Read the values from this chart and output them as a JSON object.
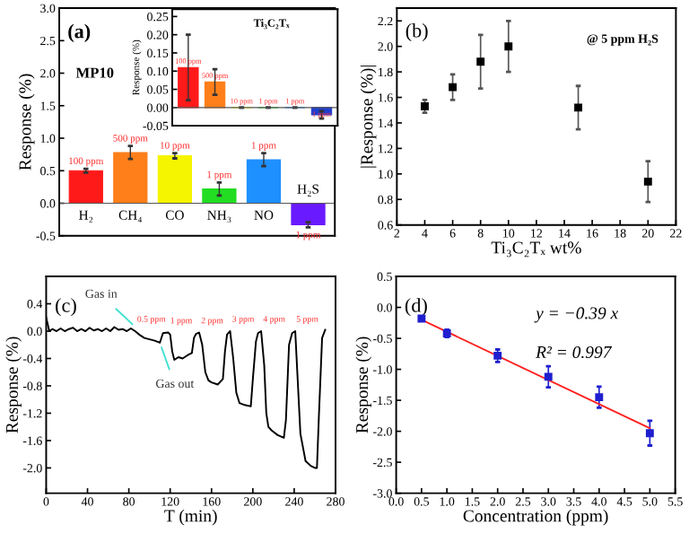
{
  "chart_data": [
    {
      "type": "bar",
      "categories": [
        "H₂",
        "CH₄",
        "CO",
        "NH₃",
        "NO",
        "H₂S"
      ],
      "values": [
        0.5,
        0.78,
        0.73,
        0.22,
        0.67,
        -0.33
      ],
      "colors": [
        "#ff1a1a",
        "#ff7f1a",
        "#f5f500",
        "#22dd22",
        "#1e90ff",
        "#6a1aff"
      ],
      "errors": [
        0.03,
        0.1,
        0.04,
        0.1,
        0.1,
        0.04
      ],
      "ylabel": "Response (%)",
      "ylim": [
        -0.5,
        3.0
      ],
      "yticks": [
        -0.5,
        {
          "value": 0,
          "label": "0.0"
        },
        0.5,
        {
          "value": 1,
          "label": "1.0"
        },
        1.5,
        {
          "value": 2,
          "label": "2.0"
        },
        2.5,
        {
          "value": 3,
          "label": "3.0"
        }
      ],
      "annotations": [
        "(a)",
        "MP10",
        {
          "text": "100 ppm",
          "x": "H₂",
          "y": 0.53
        },
        {
          "text": "500 ppm",
          "x": "CH₄",
          "y": 0.88
        },
        {
          "text": "10 ppm",
          "x": "CO",
          "y": 0.77
        },
        {
          "text": "1 ppm",
          "x": "NH₃",
          "y": 0.32
        },
        {
          "text": "1 ppm",
          "x": "NO",
          "y": 0.77
        },
        {
          "text": "1 ppm",
          "x": "H₂S",
          "y": -0.37
        }
      ]
    },
    {
      "type": "bar",
      "categories": [
        null,
        null,
        null,
        null,
        null,
        null
      ],
      "values": [
        0.11,
        0.07,
        0,
        0,
        0,
        -0.02
      ],
      "colors": [
        "#ff1a1a",
        "#ff7f1a",
        "#f5f500",
        "#22dd22",
        "#1e90ff",
        "#1f3fd0"
      ],
      "errors": [
        0.09,
        0.035,
        null,
        null,
        null,
        0.01
      ],
      "title": "Ti₃C₂Tₓ",
      "ylabel": "Response (%)",
      "ylim": [
        -0.05,
        0.27
      ],
      "yticks": [
        -0.05,
        {
          "value": 0,
          "label": "0.00"
        },
        0.05,
        {
          "value": 0.1,
          "label": "0.10"
        },
        0.15,
        {
          "value": 0.2,
          "label": "0.20"
        },
        0.25
      ],
      "annotations": [
        {
          "text": "100 ppm",
          "y": 0.11
        },
        {
          "text": "500 ppm",
          "y": 0.07
        },
        {
          "text": "10 ppm",
          "y": 0
        },
        {
          "text": "1 ppm",
          "y": 0
        },
        {
          "text": "1 ppm",
          "y": 0
        },
        {
          "text": "1 ppm",
          "y": 0
        }
      ]
    },
    {
      "type": "scatter",
      "x": [
        4,
        6,
        8,
        10,
        15,
        20
      ],
      "values": [
        1.53,
        1.68,
        1.88,
        2.0,
        1.52,
        0.94
      ],
      "errors": [
        0.05,
        0.1,
        0.21,
        0.2,
        0.17,
        0.16
      ],
      "color": "#000000",
      "marker": "square",
      "xlabel": "Ti₃C₂Tₓ wt%",
      "ylabel": "|Response (%)|",
      "xlim": [
        2,
        22
      ],
      "xticks": [
        2,
        4,
        6,
        8,
        10,
        12,
        14,
        16,
        18,
        20,
        22
      ],
      "ylim": [
        0.6,
        2.3
      ],
      "yticks": [
        0.6,
        0.8,
        {
          "value": 1,
          "label": "1.0"
        },
        1.2,
        1.4,
        1.6,
        1.8,
        {
          "value": 2,
          "label": "2.0"
        },
        2.2
      ],
      "annotations": [
        "(b)",
        "@ 5 ppm H₂S"
      ]
    },
    {
      "type": "line",
      "x": [
        0,
        3,
        6,
        10,
        14,
        18,
        22,
        26,
        30,
        34,
        38,
        42,
        46,
        50,
        54,
        58,
        62,
        66,
        70,
        74,
        78,
        82,
        86,
        90,
        95,
        100,
        105,
        110,
        113,
        118,
        120,
        122,
        124,
        128,
        132,
        137,
        141,
        143,
        145,
        148,
        151,
        154,
        157,
        160,
        166,
        171,
        173,
        175,
        178,
        181,
        184,
        187,
        192,
        198,
        200,
        203,
        205,
        208,
        211,
        213,
        215,
        218,
        224,
        230,
        232,
        235,
        238,
        241,
        243,
        246,
        251,
        256,
        260,
        262,
        264,
        267,
        270
      ],
      "values": [
        0.2,
        0.0,
        0.03,
        0.0,
        0.04,
        0.0,
        0.03,
        0.05,
        0.0,
        0.03,
        0.0,
        0.05,
        0.01,
        0.03,
        0.0,
        0.04,
        0.0,
        0.06,
        0.02,
        0.03,
        0.0,
        0.04,
        0.0,
        -0.05,
        -0.1,
        -0.12,
        -0.14,
        -0.17,
        -0.03,
        -0.02,
        -0.05,
        -0.3,
        -0.42,
        -0.38,
        -0.4,
        -0.35,
        -0.32,
        -0.1,
        -0.04,
        -0.02,
        -0.2,
        -0.6,
        -0.72,
        -0.75,
        -0.78,
        -0.7,
        -0.3,
        -0.05,
        0.0,
        -0.4,
        -0.9,
        -1.05,
        -1.08,
        -1.1,
        -0.7,
        -0.15,
        -0.03,
        0.0,
        -0.5,
        -1.2,
        -1.4,
        -1.45,
        -1.52,
        -1.56,
        -1.3,
        -0.2,
        -0.03,
        0.0,
        -0.6,
        -1.5,
        -1.9,
        -1.97,
        -2.0,
        -2.0,
        -1.2,
        -0.1,
        0.02
      ],
      "color": "#000000",
      "xlabel": "T (min)",
      "ylabel": "Response (%)",
      "xlim": [
        0,
        280
      ],
      "xticks": [
        0,
        40,
        80,
        120,
        160,
        200,
        240,
        280
      ],
      "ylim": [
        -2.37,
        0.8
      ],
      "yticks": [
        {
          "value": -2,
          "label": "-2.0"
        },
        -1.6,
        -1.2,
        -0.8,
        -0.4,
        {
          "value": 0,
          "label": "0.0"
        },
        0.4
      ],
      "annotations": [
        "(c)",
        {
          "text": "Gas in",
          "x": 87,
          "y": 0.05
        },
        {
          "text": "Gas out",
          "x": 110,
          "y": -0.17
        },
        {
          "text": "0.5 ppm",
          "x": 88,
          "y": 0.0
        },
        {
          "text": "1 ppm",
          "x": 120,
          "y": -0.02
        },
        {
          "text": "2 ppm",
          "x": 150,
          "y": -0.02
        },
        {
          "text": "3 ppm",
          "x": 180,
          "y": 0.0
        },
        {
          "text": "4 ppm",
          "x": 210,
          "y": 0.0
        },
        {
          "text": "5 ppm",
          "x": 242,
          "y": 0.0
        }
      ]
    },
    {
      "type": "scatter",
      "series": [
        {
          "type": "scatter",
          "x": [
            0.5,
            1.0,
            2.0,
            3.0,
            4.0,
            5.0
          ],
          "values": [
            -0.18,
            -0.42,
            -0.78,
            -1.12,
            -1.45,
            -2.03
          ],
          "errors": [
            0.03,
            0.06,
            0.1,
            0.17,
            0.17,
            0.2
          ],
          "color": "#1f1fd0",
          "marker": "square"
        },
        {
          "type": "line",
          "x": [
            0.5,
            5.0
          ],
          "values": [
            -0.2,
            -1.95
          ],
          "color": "#ff2020"
        }
      ],
      "xlabel": "Concentration (ppm)",
      "ylabel": "Response (%)",
      "xlim": [
        0,
        5.5
      ],
      "xticks": [
        {
          "value": 0,
          "label": "0.0"
        },
        0.5,
        {
          "value": 1,
          "label": "1.0"
        },
        1.5,
        {
          "value": 2,
          "label": "2.0"
        },
        2.5,
        {
          "value": 3,
          "label": "3.0"
        },
        3.5,
        {
          "value": 4,
          "label": "4.0"
        },
        4.5,
        {
          "value": 5,
          "label": "5.0"
        },
        5.5
      ],
      "ylim": [
        -3.0,
        0.5
      ],
      "yticks": [
        {
          "value": -3,
          "label": "-3.0"
        },
        -2.5,
        {
          "value": -2,
          "label": "-2.0"
        },
        -1.5,
        {
          "value": -1,
          "label": "-1.0"
        },
        -0.5,
        {
          "value": 0,
          "label": "0.0"
        },
        0.5
      ],
      "annotations": [
        "(d)",
        "y = −0.39 x",
        "R² = 0.997"
      ]
    }
  ]
}
